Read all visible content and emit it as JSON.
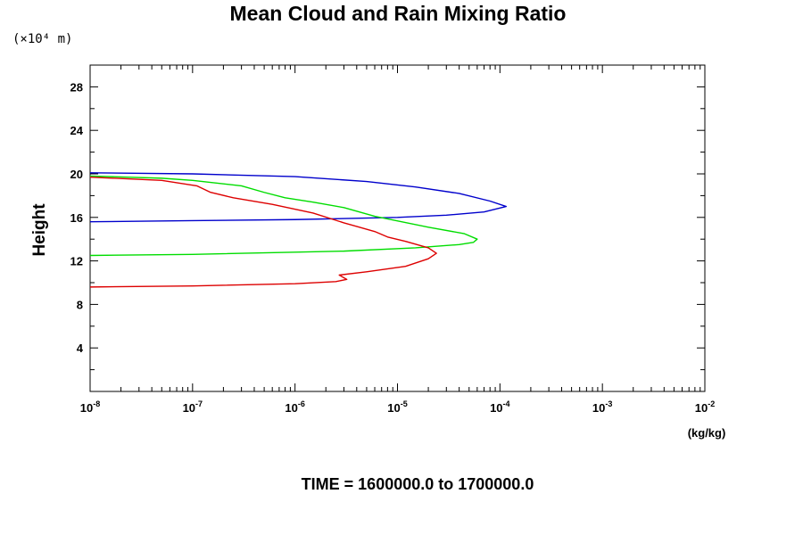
{
  "chart_data": {
    "type": "line",
    "title": "Mean Cloud and Rain Mixing Ratio",
    "xlabel": "(kg/kg)",
    "ylabel": "Height",
    "y_scale_label": "(×10⁴ m)",
    "footer": "TIME = 1600000.0 to 1700000.0",
    "x_scale": "log",
    "xlim": [
      1e-08,
      0.01
    ],
    "ylim": [
      0,
      30
    ],
    "x_ticks": [
      {
        "base": "10",
        "exp": "-8"
      },
      {
        "base": "10",
        "exp": "-7"
      },
      {
        "base": "10",
        "exp": "-6"
      },
      {
        "base": "10",
        "exp": "-5"
      },
      {
        "base": "10",
        "exp": "-4"
      },
      {
        "base": "10",
        "exp": "-3"
      },
      {
        "base": "10",
        "exp": "-2"
      }
    ],
    "y_ticks": [
      "4",
      "8",
      "12",
      "16",
      "20",
      "24",
      "28"
    ],
    "grid": false,
    "series": [
      {
        "color": "#0000cc",
        "points": [
          [
            1e-08,
            20.1
          ],
          [
            1e-07,
            20.0
          ],
          [
            1e-06,
            19.75
          ],
          [
            5e-06,
            19.3
          ],
          [
            1.5e-05,
            18.8
          ],
          [
            4e-05,
            18.2
          ],
          [
            8e-05,
            17.5
          ],
          [
            0.000115,
            17.0
          ],
          [
            7e-05,
            16.5
          ],
          [
            3e-05,
            16.2
          ],
          [
            1e-05,
            16.0
          ],
          [
            1e-06,
            15.8
          ],
          [
            1e-07,
            15.7
          ],
          [
            1e-08,
            15.6
          ]
        ]
      },
      {
        "color": "#00dd00",
        "points": [
          [
            1e-08,
            19.8
          ],
          [
            5e-08,
            19.6
          ],
          [
            1e-07,
            19.4
          ],
          [
            3e-07,
            18.9
          ],
          [
            5e-07,
            18.3
          ],
          [
            8e-07,
            17.8
          ],
          [
            1.5e-06,
            17.4
          ],
          [
            3e-06,
            16.9
          ],
          [
            6e-06,
            16.1
          ],
          [
            2e-05,
            15.1
          ],
          [
            4.5e-05,
            14.5
          ],
          [
            6e-05,
            14.0
          ],
          [
            5.5e-05,
            13.7
          ],
          [
            4e-05,
            13.5
          ],
          [
            1.5e-05,
            13.2
          ],
          [
            3e-06,
            12.9
          ],
          [
            1e-06,
            12.8
          ],
          [
            1e-07,
            12.6
          ],
          [
            1e-08,
            12.5
          ]
        ]
      },
      {
        "color": "#dd0000",
        "points": [
          [
            1e-08,
            19.7
          ],
          [
            5e-08,
            19.4
          ],
          [
            1.1e-07,
            18.9
          ],
          [
            1.5e-07,
            18.3
          ],
          [
            2.5e-07,
            17.8
          ],
          [
            6e-07,
            17.2
          ],
          [
            1.5e-06,
            16.4
          ],
          [
            3e-06,
            15.5
          ],
          [
            6e-06,
            14.7
          ],
          [
            8e-06,
            14.2
          ],
          [
            1.2e-05,
            13.8
          ],
          [
            2e-05,
            13.2
          ],
          [
            2.4e-05,
            12.7
          ],
          [
            2e-05,
            12.2
          ],
          [
            1.2e-05,
            11.5
          ],
          [
            5e-06,
            11.0
          ],
          [
            2.7e-06,
            10.7
          ],
          [
            3.2e-06,
            10.3
          ],
          [
            2.5e-06,
            10.1
          ],
          [
            1e-06,
            9.9
          ],
          [
            1e-07,
            9.7
          ],
          [
            1e-08,
            9.6
          ]
        ]
      }
    ]
  }
}
